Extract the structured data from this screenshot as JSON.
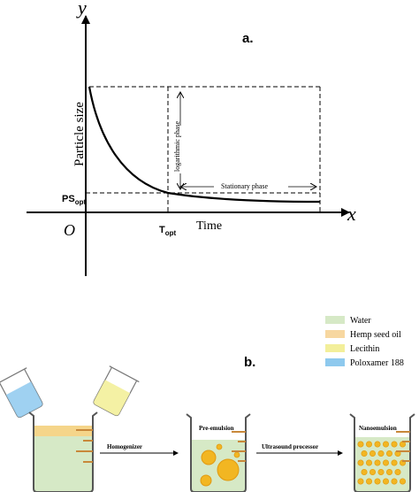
{
  "panel_a": {
    "label": "a.",
    "y_axis_letter": "y",
    "x_axis_letter": "x",
    "origin_label": "O",
    "y_axis_title": "Particle size",
    "x_axis_title": "Time",
    "ps_opt_main": "PS",
    "ps_opt_sub": "opt",
    "t_opt_main": "T",
    "t_opt_sub": "opt",
    "log_phase_label": "logarithmic phase",
    "stationary_phase_label": "Stationary phase"
  },
  "panel_b": {
    "label": "b.",
    "legend": [
      {
        "label": "Water",
        "color": "#d6e9c6"
      },
      {
        "label": "Hemp seed oil",
        "color": "#f7d7a0"
      },
      {
        "label": "Lecithin",
        "color": "#f3ef9a"
      },
      {
        "label": "Poloxamer 188",
        "color": "#8ec9ee"
      }
    ],
    "step1_label": "Homogenizer",
    "step2_label": "Ultrasound processor",
    "beaker2_label": "Pre-emulsion",
    "beaker3_label": "Nanoemulsion"
  },
  "colors": {
    "water": "#d6e9c6",
    "oil_band": "#f5d58a",
    "droplet": "#f2b622",
    "droplet_edge": "#e09a12",
    "lecithin": "#f3ef9a",
    "poloxamer": "#8ec9ee",
    "glass": "#555555",
    "graduation": "#c8883a"
  }
}
